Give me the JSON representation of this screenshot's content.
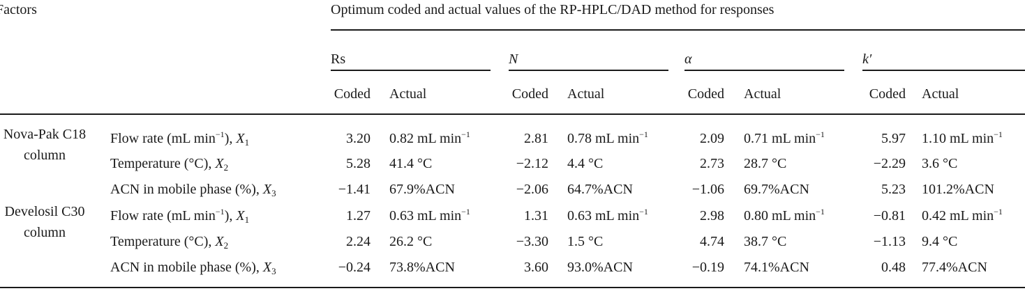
{
  "header": {
    "factors_label": "Factors",
    "title": "Optimum coded and actual values of the RP-HPLC/DAD method for responses",
    "responses": [
      "Rs",
      "N",
      "α",
      "k′"
    ],
    "coded_label": "Coded",
    "actual_label": "Actual"
  },
  "groups": [
    {
      "name_line1": "Nova-Pak C18",
      "name_line2": "column",
      "rows": [
        {
          "factor_pre": "Flow rate (mL min",
          "factor_sup": "−1",
          "factor_post": "), ",
          "var": "X",
          "sub": "1",
          "cells": [
            {
              "coded": "3.20",
              "actual": "0.82 mL min",
              "unit_sup": "−1"
            },
            {
              "coded": "2.81",
              "actual": "0.78 mL min",
              "unit_sup": "−1"
            },
            {
              "coded": "2.09",
              "actual": "0.71 mL min",
              "unit_sup": "−1"
            },
            {
              "coded": "5.97",
              "actual": "1.10 mL min",
              "unit_sup": "−1"
            }
          ]
        },
        {
          "factor_pre": "Temperature (°C), ",
          "factor_sup": "",
          "factor_post": "",
          "var": "X",
          "sub": "2",
          "cells": [
            {
              "coded": "5.28",
              "actual": "41.4 °C",
              "unit_sup": ""
            },
            {
              "coded": "−2.12",
              "actual": "4.4 °C",
              "unit_sup": ""
            },
            {
              "coded": "2.73",
              "actual": "28.7 °C",
              "unit_sup": ""
            },
            {
              "coded": "−2.29",
              "actual": "3.6 °C",
              "unit_sup": ""
            }
          ]
        },
        {
          "factor_pre": "ACN in mobile phase (%), ",
          "factor_sup": "",
          "factor_post": "",
          "var": "X",
          "sub": "3",
          "cells": [
            {
              "coded": "−1.41",
              "actual": "67.9%ACN",
              "unit_sup": ""
            },
            {
              "coded": "−2.06",
              "actual": "64.7%ACN",
              "unit_sup": ""
            },
            {
              "coded": "−1.06",
              "actual": "69.7%ACN",
              "unit_sup": ""
            },
            {
              "coded": "5.23",
              "actual": "101.2%ACN",
              "unit_sup": ""
            }
          ]
        }
      ]
    },
    {
      "name_line1": "Develosil C30",
      "name_line2": "column",
      "rows": [
        {
          "factor_pre": "Flow rate (mL min",
          "factor_sup": "−1",
          "factor_post": "), ",
          "var": "X",
          "sub": "1",
          "cells": [
            {
              "coded": "1.27",
              "actual": "0.63 mL min",
              "unit_sup": "−1"
            },
            {
              "coded": "1.31",
              "actual": "0.63 mL min",
              "unit_sup": "−1"
            },
            {
              "coded": "2.98",
              "actual": "0.80 mL min",
              "unit_sup": "−1"
            },
            {
              "coded": "−0.81",
              "actual": "0.42 mL min",
              "unit_sup": "−1"
            }
          ]
        },
        {
          "factor_pre": "Temperature (°C), ",
          "factor_sup": "",
          "factor_post": "",
          "var": "X",
          "sub": "2",
          "cells": [
            {
              "coded": "2.24",
              "actual": "26.2 °C",
              "unit_sup": ""
            },
            {
              "coded": "−3.30",
              "actual": "1.5 °C",
              "unit_sup": ""
            },
            {
              "coded": "4.74",
              "actual": "38.7 °C",
              "unit_sup": ""
            },
            {
              "coded": "−1.13",
              "actual": "9.4 °C",
              "unit_sup": ""
            }
          ]
        },
        {
          "factor_pre": "ACN in mobile phase (%), ",
          "factor_sup": "",
          "factor_post": "",
          "var": "X",
          "sub": "3",
          "cells": [
            {
              "coded": "−0.24",
              "actual": "73.8%ACN",
              "unit_sup": ""
            },
            {
              "coded": "3.60",
              "actual": "93.0%ACN",
              "unit_sup": ""
            },
            {
              "coded": "−0.19",
              "actual": "74.1%ACN",
              "unit_sup": ""
            },
            {
              "coded": "0.48",
              "actual": "77.4%ACN",
              "unit_sup": ""
            }
          ]
        }
      ]
    }
  ]
}
